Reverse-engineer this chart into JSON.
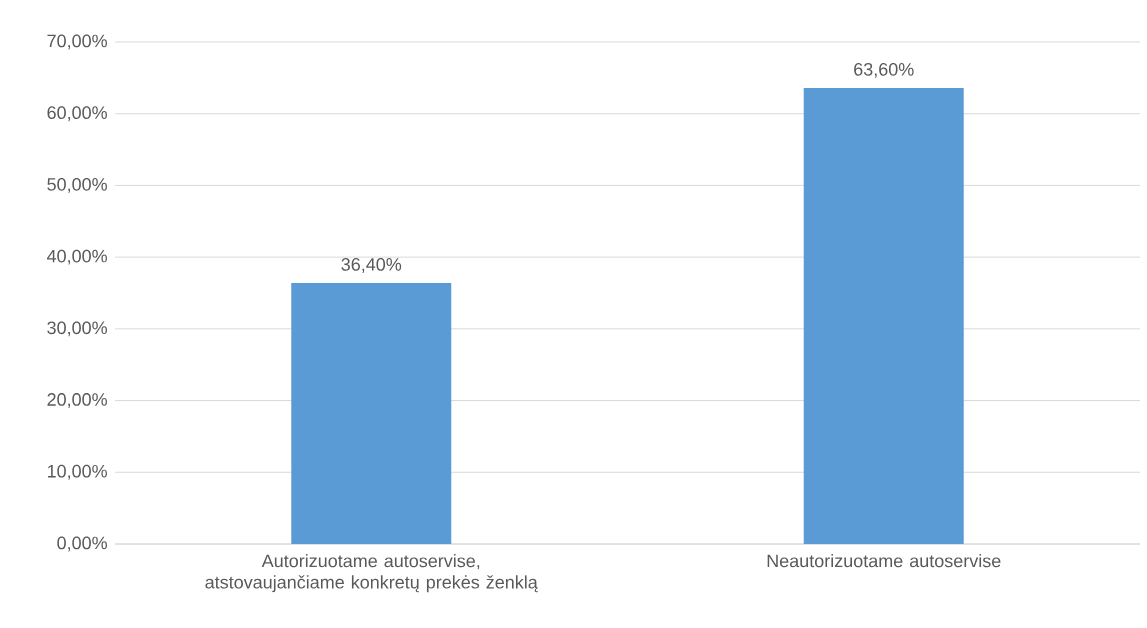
{
  "chart_data": {
    "type": "bar",
    "categories": [
      "Autorizuotame autoservise, atstovaujančiame konkretų prekės ženklą",
      "Neautorizuotame autoservise"
    ],
    "values": [
      36.4,
      63.6
    ],
    "color": "#5b9bd5",
    "value_labels": [
      "36,40%",
      "63,60%"
    ],
    "ylim": [
      0,
      70
    ],
    "yticks": [
      {
        "value": 0,
        "label": "0,00%"
      },
      {
        "value": 10,
        "label": "10,00%"
      },
      {
        "value": 20,
        "label": "20,00%"
      },
      {
        "value": 30,
        "label": "30,00%"
      },
      {
        "value": 40,
        "label": "40,00%"
      },
      {
        "value": 50,
        "label": "50,00%"
      },
      {
        "value": 60,
        "label": "60,00%"
      },
      {
        "value": 70,
        "label": "70,00%"
      }
    ],
    "grid": "y"
  }
}
